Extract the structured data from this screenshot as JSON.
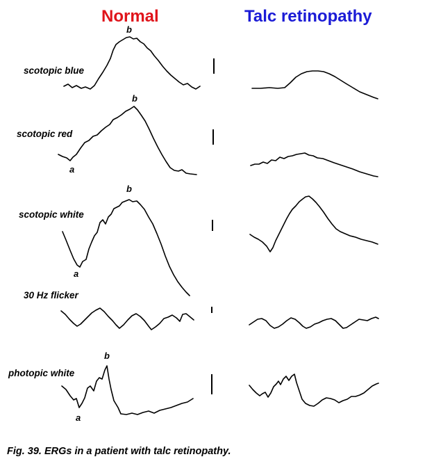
{
  "columns": {
    "normal": {
      "title": "Normal",
      "color": "#e0141b"
    },
    "talc": {
      "title": "Talc retinopathy",
      "color": "#1b1bd6"
    }
  },
  "rows": [
    {
      "label": "scotopic blue",
      "normal_marks": [
        "b"
      ]
    },
    {
      "label": "scotopic red",
      "normal_marks": [
        "b",
        "a"
      ]
    },
    {
      "label": "scotopic white",
      "normal_marks": [
        "b",
        "a"
      ]
    },
    {
      "label": "30 Hz flicker",
      "normal_marks": []
    },
    {
      "label": "photopic white",
      "normal_marks": [
        "b",
        "a"
      ]
    }
  ],
  "caption": "Fig. 39. ERGs in a patient with talc retinopathy."
}
